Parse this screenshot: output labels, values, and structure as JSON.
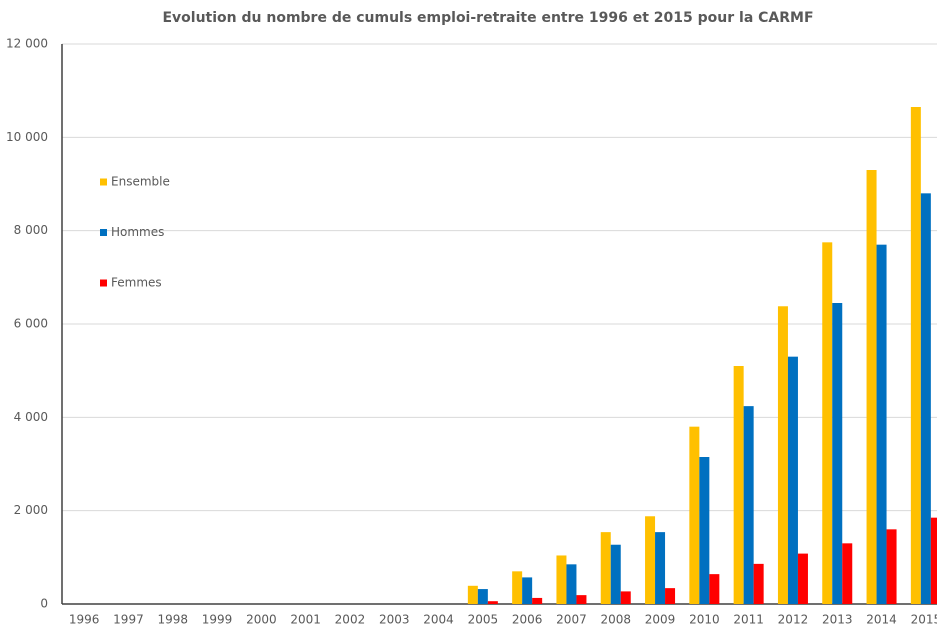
{
  "chart_data": {
    "type": "bar",
    "title": "Evolution du nombre de cumuls emploi-retraite entre 1996 et 2015 pour la CARMF",
    "categories": [
      "1996",
      "1997",
      "1998",
      "1999",
      "2000",
      "2001",
      "2002",
      "2003",
      "2004",
      "2005",
      "2006",
      "2007",
      "2008",
      "2009",
      "2010",
      "2011",
      "2012",
      "2013",
      "2014",
      "2015"
    ],
    "series": [
      {
        "name": "Ensemble",
        "color": "#ffc000",
        "values": [
          0,
          0,
          0,
          0,
          0,
          0,
          0,
          0,
          0,
          390,
          700,
          1040,
          1540,
          1880,
          3800,
          5100,
          6380,
          7750,
          9300,
          10650
        ]
      },
      {
        "name": "Hommes",
        "color": "#0070c0",
        "values": [
          0,
          0,
          0,
          0,
          0,
          0,
          0,
          0,
          0,
          320,
          570,
          850,
          1270,
          1540,
          3150,
          4240,
          5300,
          6450,
          7700,
          8800
        ]
      },
      {
        "name": "Femmes",
        "color": "#ff0000",
        "values": [
          0,
          0,
          0,
          0,
          0,
          0,
          0,
          0,
          0,
          60,
          130,
          190,
          270,
          340,
          640,
          860,
          1080,
          1300,
          1600,
          1850
        ]
      }
    ],
    "ylim": [
      0,
      12000
    ],
    "yticks": [
      0,
      {
        "value": 2000,
        "label": "2 000"
      },
      {
        "value": 4000,
        "label": "4 000"
      },
      {
        "value": 6000,
        "label": "6 000"
      },
      {
        "value": 8000,
        "label": "8 000"
      },
      {
        "value": 10000,
        "label": "10 000"
      },
      {
        "value": 12000,
        "label": "12 000"
      }
    ],
    "grid": true,
    "legend": "left"
  }
}
